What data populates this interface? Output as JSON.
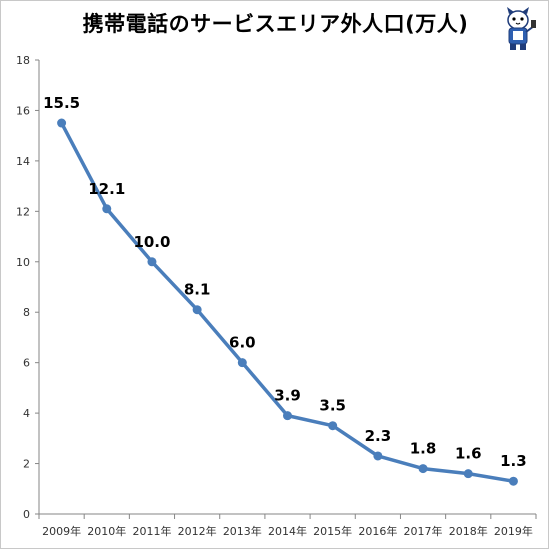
{
  "title": "携帯電話のサービスエリア外人口(万人)",
  "mascot_icon": "cat-mascot-icon",
  "colors": {
    "line": "#4a7ebb",
    "axis": "#868686"
  },
  "chart_data": {
    "type": "line",
    "title": "携帯電話のサービスエリア外人口(万人)",
    "categories": [
      "2009年",
      "2010年",
      "2011年",
      "2012年",
      "2013年",
      "2014年",
      "2015年",
      "2016年",
      "2017年",
      "2018年",
      "2019年"
    ],
    "series": [
      {
        "values": [
          15.5,
          12.1,
          10.0,
          8.1,
          6.0,
          3.9,
          3.5,
          2.3,
          1.8,
          1.6,
          1.3
        ]
      }
    ],
    "data_labels": [
      "15.5",
      "12.1",
      "10.0",
      "8.1",
      "6.0",
      "3.9",
      "3.5",
      "2.3",
      "1.8",
      "1.6",
      "1.3"
    ],
    "ylim": [
      0,
      18
    ],
    "yticks": [
      0,
      2,
      4,
      6,
      8,
      10,
      12,
      14,
      16,
      18
    ],
    "grid": false,
    "legend": "none"
  }
}
